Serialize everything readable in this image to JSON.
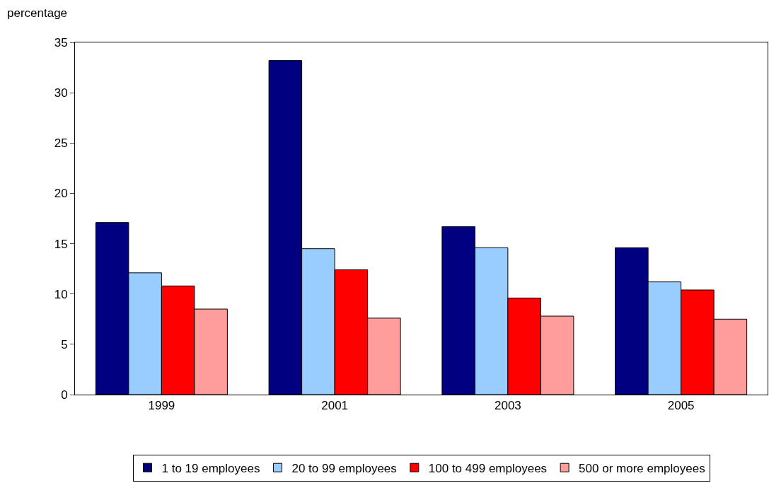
{
  "chart_data": {
    "type": "bar",
    "ylabel": "percentage",
    "categories": [
      "1999",
      "2001",
      "2003",
      "2005"
    ],
    "series": [
      {
        "name": "1 to 19 employees",
        "color": "#000080",
        "values": [
          17.1,
          33.2,
          16.7,
          14.6
        ]
      },
      {
        "name": "20 to 99 employees",
        "color": "#99ccff",
        "values": [
          12.1,
          14.5,
          14.6,
          11.2
        ]
      },
      {
        "name": "100 to 499 employees",
        "color": "#ff0000",
        "values": [
          10.8,
          12.4,
          9.6,
          10.4
        ]
      },
      {
        "name": "500 or more employees",
        "color": "#ff9c9c",
        "values": [
          8.5,
          7.6,
          7.8,
          7.5
        ]
      }
    ],
    "ylim": [
      0,
      35
    ],
    "yticks": [
      0,
      5,
      10,
      15,
      20,
      25,
      30,
      35
    ],
    "legend": "bottom"
  }
}
